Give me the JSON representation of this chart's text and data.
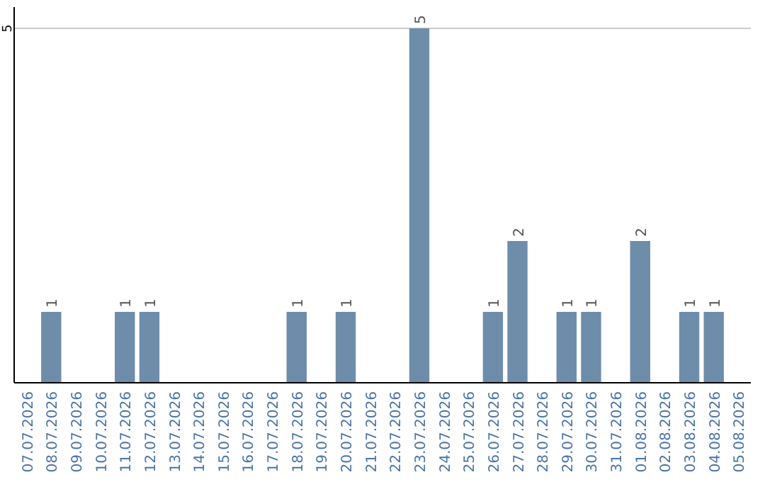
{
  "chart_data": {
    "type": "bar",
    "categories": [
      "07.07.2026",
      "08.07.2026",
      "09.07.2026",
      "10.07.2026",
      "11.07.2026",
      "12.07.2026",
      "13.07.2026",
      "14.07.2026",
      "15.07.2026",
      "16.07.2026",
      "17.07.2026",
      "18.07.2026",
      "19.07.2026",
      "20.07.2026",
      "21.07.2026",
      "22.07.2026",
      "23.07.2026",
      "24.07.2026",
      "25.07.2026",
      "26.07.2026",
      "27.07.2026",
      "28.07.2026",
      "29.07.2026",
      "30.07.2026",
      "31.07.2026",
      "01.08.2026",
      "02.08.2026",
      "03.08.2026",
      "04.08.2026",
      "05.08.2026"
    ],
    "values": [
      0,
      1,
      0,
      0,
      1,
      1,
      0,
      0,
      0,
      0,
      0,
      1,
      0,
      1,
      0,
      0,
      5,
      0,
      0,
      1,
      2,
      0,
      1,
      1,
      0,
      2,
      0,
      1,
      1,
      0
    ],
    "value_labels": [
      null,
      "1",
      null,
      null,
      "1",
      "1",
      null,
      null,
      null,
      null,
      null,
      "1",
      null,
      "1",
      null,
      null,
      "5",
      null,
      null,
      "1",
      "2",
      null,
      "1",
      "1",
      null,
      "2",
      null,
      "1",
      "1",
      null
    ],
    "color": "#6e8dab",
    "ylim": [
      0,
      5.3
    ],
    "yticks": [
      5
    ],
    "grid": "y"
  }
}
